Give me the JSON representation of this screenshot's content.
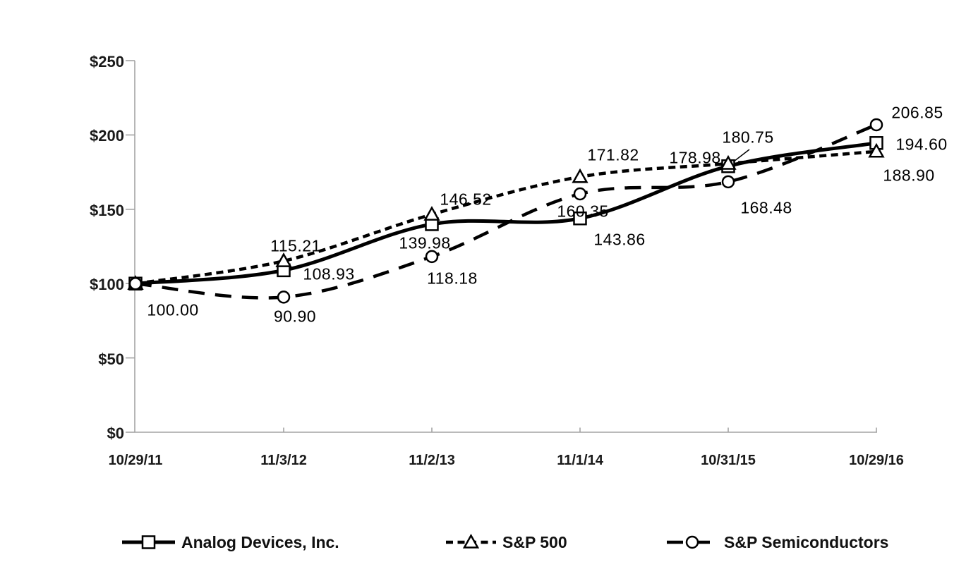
{
  "chart_data": {
    "type": "line",
    "title": "",
    "x_categories": [
      "10/29/11",
      "11/3/12",
      "11/2/13",
      "11/1/14",
      "10/31/15",
      "10/29/16"
    ],
    "y_axis": {
      "tick_labels": [
        "$250",
        "$200",
        "$150",
        "$100",
        "$50",
        "$0"
      ],
      "tick_values": [
        250,
        200,
        150,
        100,
        50,
        0
      ],
      "range": [
        0,
        250
      ]
    },
    "grid": "off",
    "legend_position": "bottom",
    "series": [
      {
        "name": "Analog Devices, Inc.",
        "marker": "square",
        "line_style": "solid",
        "color": "#000000",
        "values": [
          100.0,
          108.93,
          139.98,
          143.86,
          178.98,
          194.6
        ],
        "point_labels": [
          "100.00",
          "108.93",
          "139.98",
          "143.86",
          "178.98",
          "194.60"
        ],
        "label_offsets": [
          [
            53,
            38
          ],
          [
            64,
            6
          ],
          [
            -10,
            27
          ],
          [
            56,
            30
          ],
          [
            -47,
            -12
          ],
          [
            64,
            2
          ]
        ]
      },
      {
        "name": "S&P 500",
        "marker": "triangle",
        "line_style": "dotted",
        "color": "#000000",
        "values": [
          100.0,
          115.21,
          146.52,
          171.82,
          180.75,
          188.9
        ],
        "point_labels": [
          null,
          "115.21",
          "146.52",
          "171.82",
          "180.75",
          "188.90"
        ],
        "label_offsets": [
          null,
          [
            17,
            -21
          ],
          [
            48,
            -21
          ],
          [
            47,
            -31
          ],
          [
            28,
            -37
          ],
          [
            46,
            34
          ]
        ],
        "leader_line": {
          "point": 4,
          "from": [
            30,
            -20
          ],
          "to": [
            4,
            0
          ]
        }
      },
      {
        "name": "S&P Semiconductors",
        "marker": "circle",
        "line_style": "long-dash",
        "color": "#000000",
        "values": [
          100.0,
          90.9,
          118.18,
          160.35,
          168.48,
          206.85
        ],
        "point_labels": [
          null,
          "90.90",
          "118.18",
          "160.35",
          "168.48",
          "206.85"
        ],
        "label_offsets": [
          null,
          [
            16,
            28
          ],
          [
            29,
            31
          ],
          [
            4,
            25
          ],
          [
            54,
            37
          ],
          [
            58,
            -17
          ]
        ]
      }
    ],
    "colors": {
      "line": "#000000",
      "axis": "#a3a3a3",
      "text": "#1a1a1a",
      "background": "#ffffff"
    }
  }
}
